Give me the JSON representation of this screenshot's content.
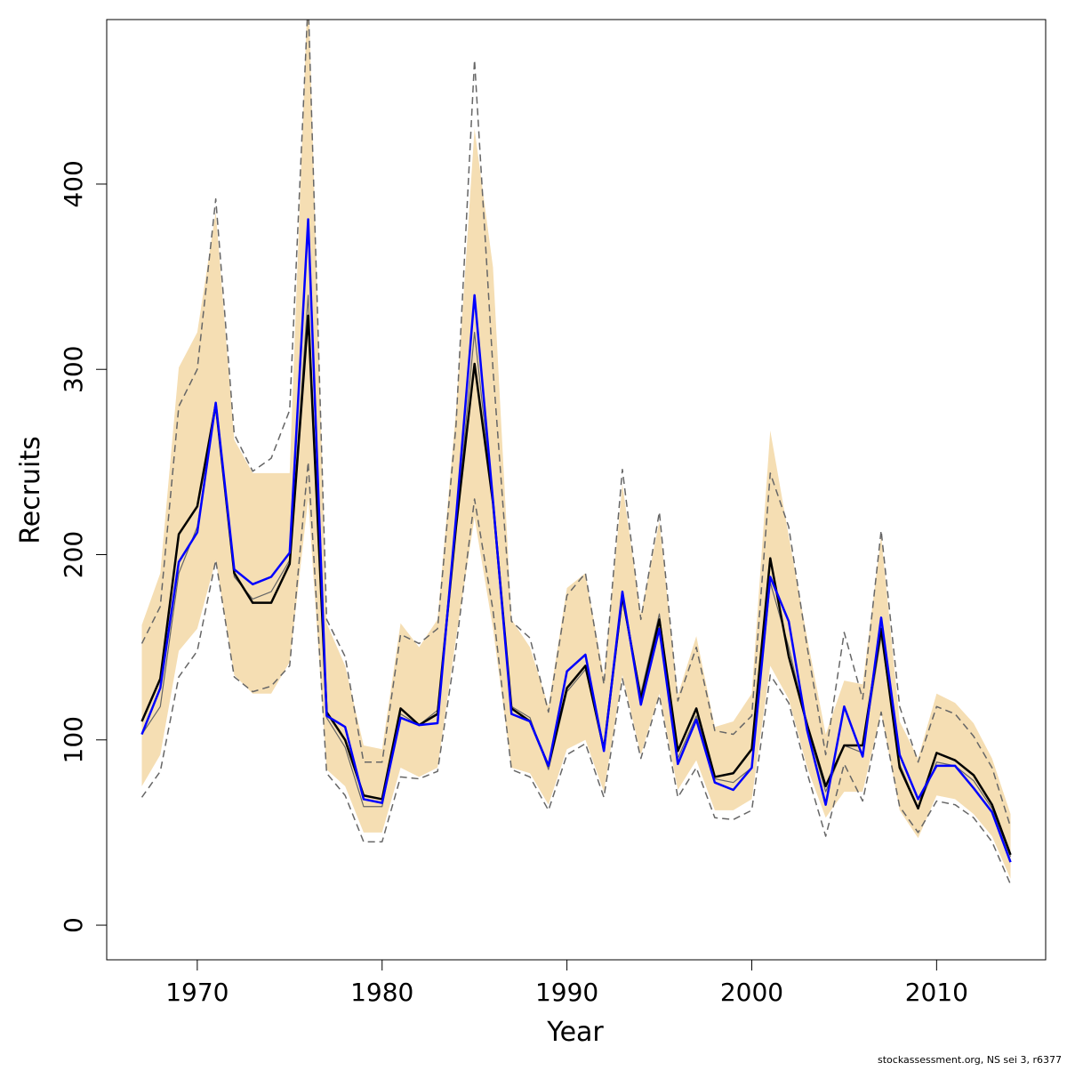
{
  "chart_data": {
    "type": "line",
    "xlabel": "Year",
    "ylabel": "Recruits",
    "footnote": "stockassessment.org, NS sei 3, r6377",
    "x": [
      1967,
      1968,
      1969,
      1970,
      1971,
      1972,
      1973,
      1974,
      1975,
      1976,
      1977,
      1978,
      1979,
      1980,
      1981,
      1982,
      1983,
      1984,
      1985,
      1986,
      1987,
      1988,
      1989,
      1990,
      1991,
      1992,
      1993,
      1994,
      1995,
      1996,
      1997,
      1998,
      1999,
      2000,
      2001,
      2002,
      2003,
      2004,
      2005,
      2006,
      2007,
      2008,
      2009,
      2010,
      2011,
      2012,
      2013,
      2014
    ],
    "xlim": [
      1965.1,
      2015.9
    ],
    "xticks": [
      1970,
      1980,
      1990,
      2000,
      2010
    ],
    "ylim": [
      -18.7,
      488.8
    ],
    "yticks": [
      0,
      100,
      200,
      300,
      400
    ],
    "band": {
      "color": "#f5deb3",
      "upper": [
        162,
        190,
        301,
        320,
        385,
        262,
        244,
        244,
        244,
        510,
        163,
        140,
        97,
        95,
        163,
        150,
        165,
        278,
        430,
        355,
        165,
        150,
        118,
        182,
        190,
        134,
        238,
        168,
        218,
        124,
        156,
        107,
        110,
        125,
        267,
        210,
        155,
        103,
        132,
        130,
        210,
        110,
        90,
        125,
        120,
        109,
        90,
        60
      ],
      "lower": [
        75,
        92,
        148,
        160,
        197,
        135,
        125,
        125,
        142,
        230,
        84,
        75,
        50,
        50,
        85,
        80,
        85,
        155,
        220,
        160,
        85,
        82,
        65,
        95,
        100,
        72,
        135,
        92,
        125,
        73,
        89,
        62,
        62,
        68,
        140,
        122,
        85,
        58,
        72,
        72,
        115,
        62,
        47,
        70,
        68,
        60,
        48,
        25
      ]
    },
    "series": [
      {
        "color": "#666666",
        "dash": true,
        "values": [
          152,
          172,
          280,
          300,
          392,
          265,
          245,
          252,
          278,
          500,
          165,
          145,
          88,
          88,
          157,
          152,
          160,
          270,
          467,
          300,
          164,
          155,
          115,
          178,
          190,
          130,
          246,
          165,
          223,
          121,
          150,
          105,
          103,
          113,
          244,
          215,
          150,
          92,
          158,
          122,
          213,
          118,
          88,
          118,
          114,
          102,
          85,
          53
        ]
      },
      {
        "color": "#666666",
        "dash": true,
        "values": [
          69,
          83,
          134,
          148,
          197,
          134,
          126,
          129,
          140,
          250,
          82,
          70,
          45,
          45,
          80,
          79,
          83,
          150,
          230,
          170,
          84,
          80,
          62,
          92,
          98,
          69,
          133,
          90,
          124,
          69,
          85,
          58,
          57,
          62,
          135,
          120,
          82,
          48,
          87,
          67,
          115,
          64,
          50,
          67,
          65,
          58,
          45,
          22
        ]
      },
      {
        "color": "#666666",
        "dash": false,
        "values": [
          103,
          118,
          190,
          215,
          280,
          188,
          176,
          180,
          197,
          340,
          112,
          96,
          64,
          64,
          114,
          108,
          116,
          215,
          320,
          228,
          118,
          112,
          84,
          126,
          138,
          96,
          175,
          125,
          168,
          90,
          113,
          79,
          77,
          85,
          185,
          150,
          107,
          72,
          97,
          93,
          156,
          87,
          63,
          88,
          86,
          78,
          63,
          37
        ]
      },
      {
        "color": "#000000",
        "dash": false,
        "values": [
          110,
          133,
          211,
          226,
          281,
          190,
          174,
          174,
          195,
          329,
          115,
          100,
          70,
          68,
          117,
          108,
          114,
          215,
          303,
          228,
          117,
          110,
          86,
          128,
          140,
          95,
          178,
          122,
          165,
          94,
          117,
          80,
          82,
          95,
          198,
          145,
          108,
          75,
          97,
          97,
          160,
          85,
          63,
          93,
          89,
          81,
          65,
          38
        ]
      },
      {
        "color": "#0000ff",
        "dash": false,
        "values": [
          103,
          128,
          196,
          212,
          282,
          192,
          184,
          188,
          201,
          381,
          113,
          107,
          68,
          66,
          112,
          108,
          109,
          220,
          340,
          229,
          114,
          110,
          86,
          137,
          146,
          94,
          180,
          119,
          160,
          87,
          111,
          77,
          73,
          85,
          188,
          164,
          105,
          65,
          118,
          91,
          166,
          92,
          68,
          86,
          86,
          74,
          61,
          34
        ]
      }
    ]
  }
}
